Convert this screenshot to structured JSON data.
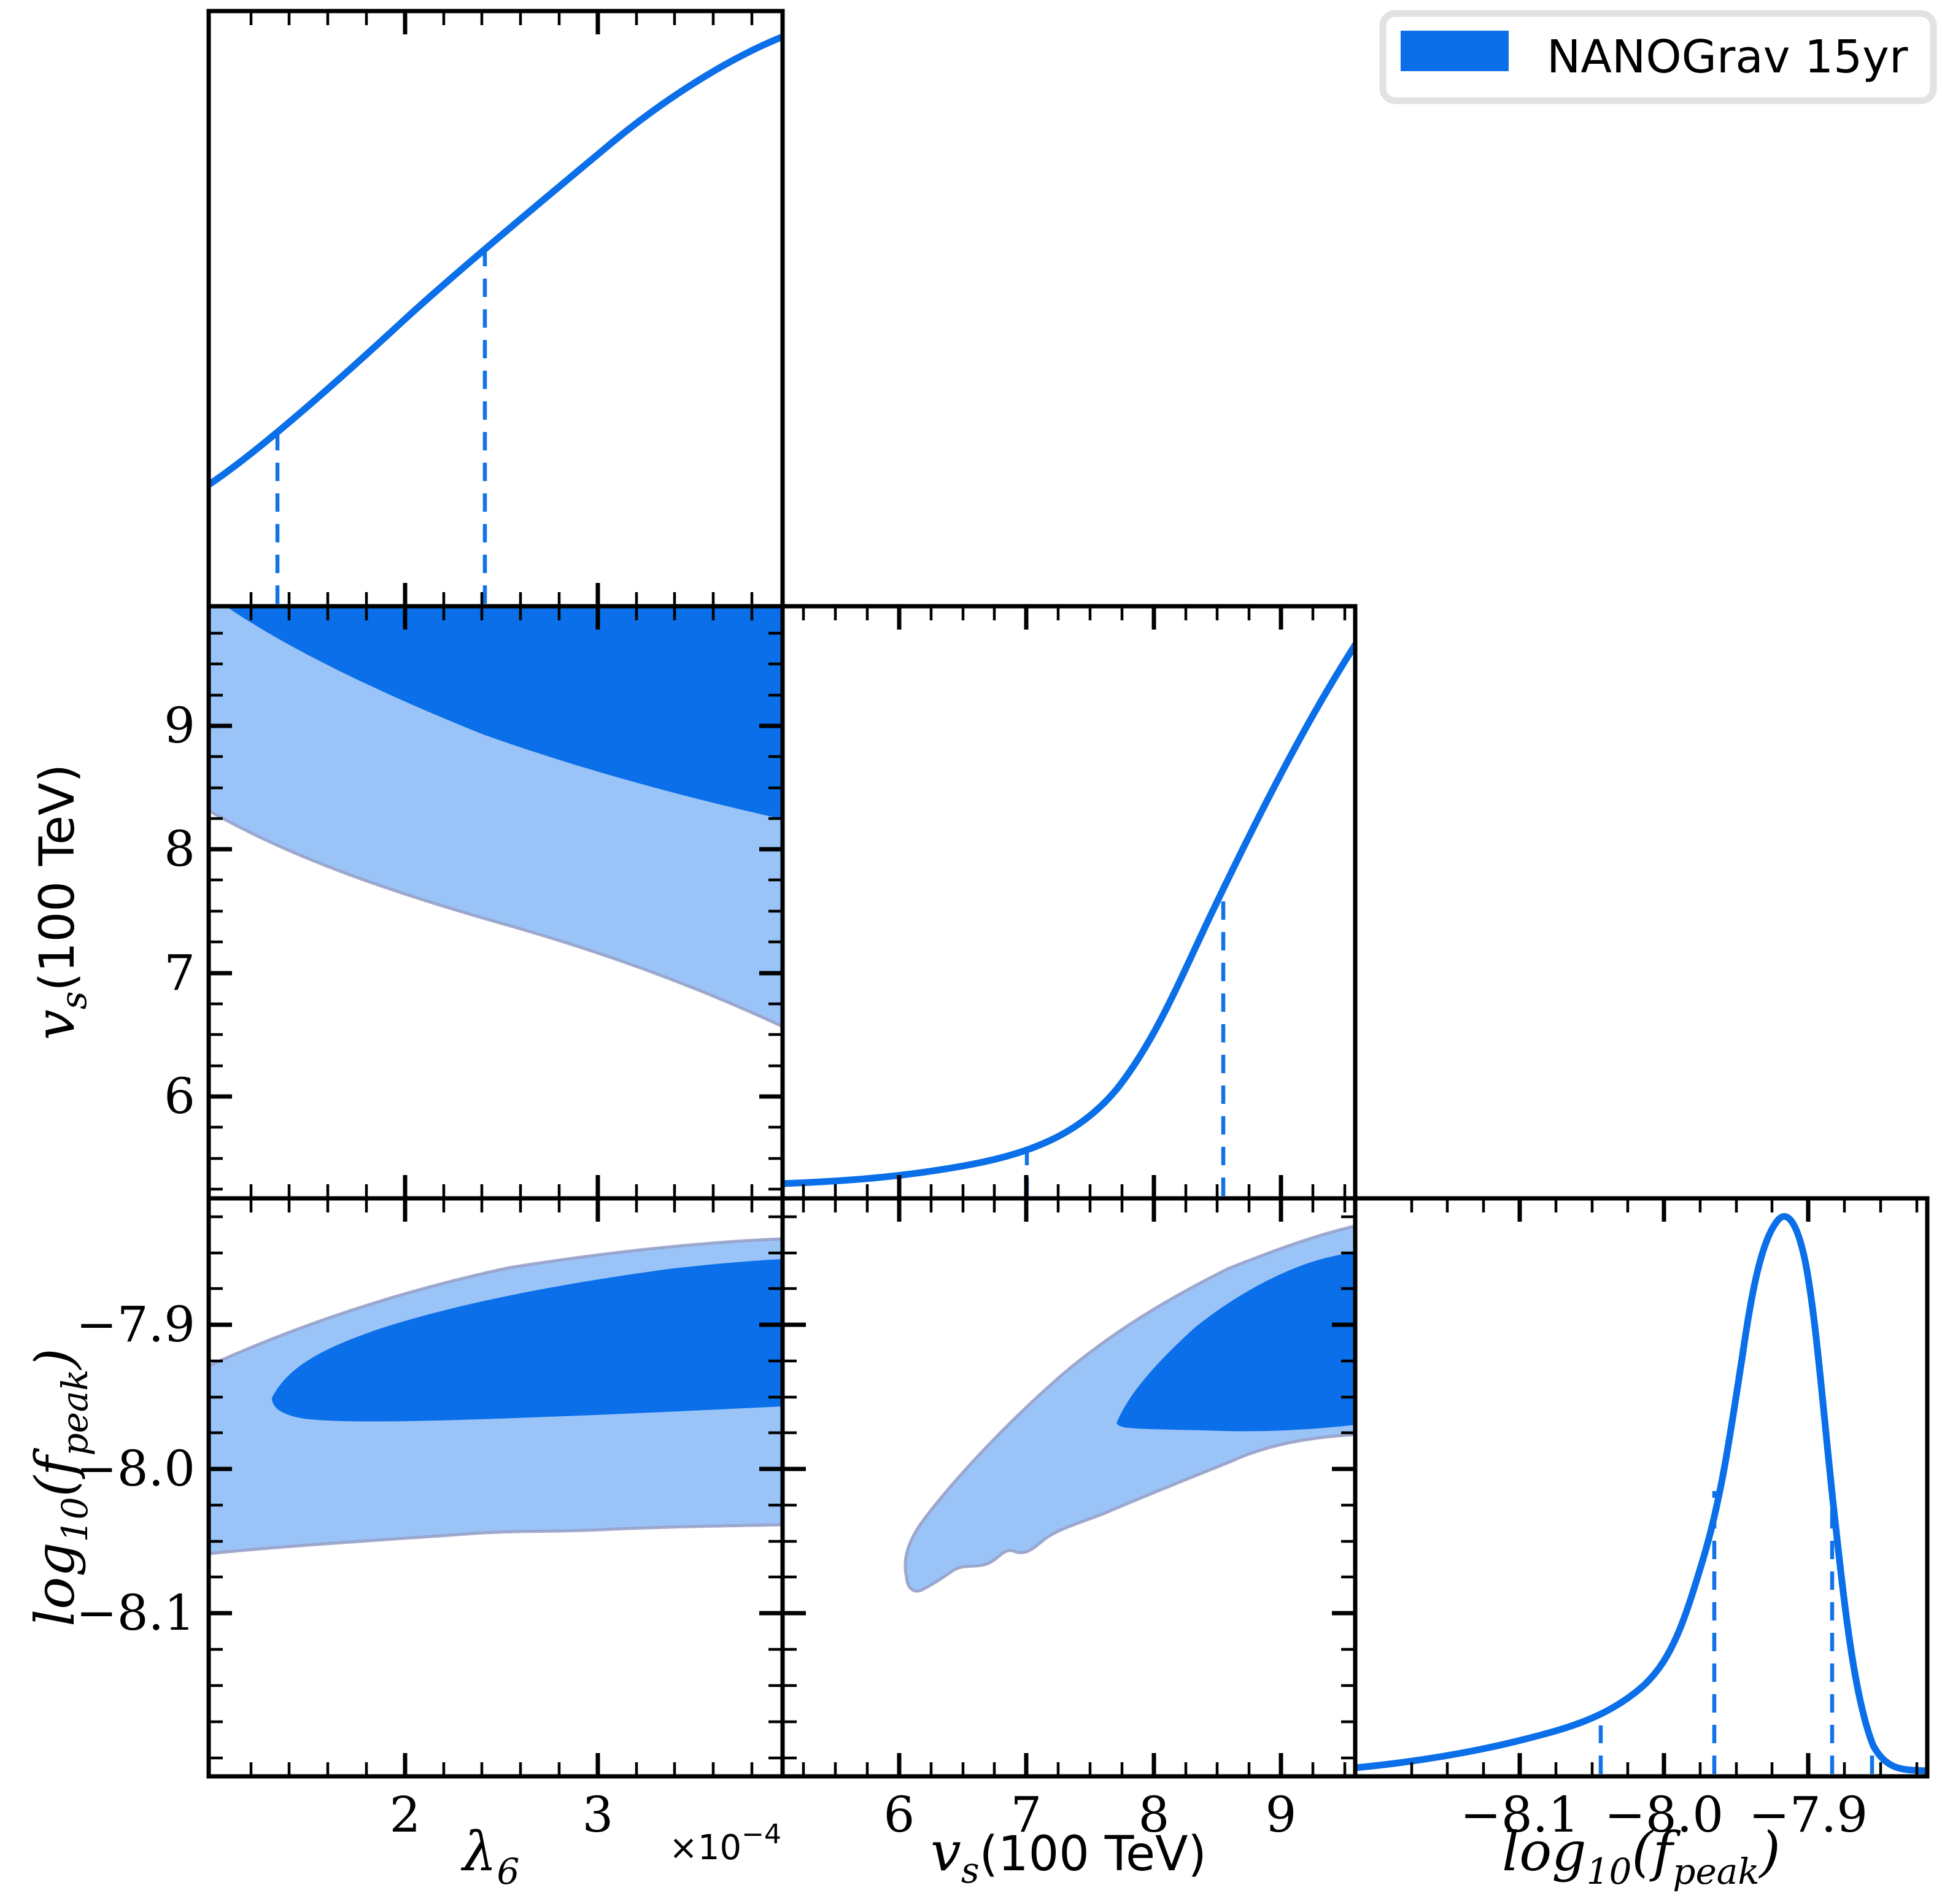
{
  "figure": {
    "background": "#ffffff",
    "legend": {
      "label": "NANOGrav 15yr",
      "swatch_color": "#0a6fe8"
    },
    "colors": {
      "contour_68_fill": "#0a6fe8",
      "contour_95_fill": "#9ac4f7",
      "contour_edge": "#98a1c9",
      "curve": "#0a6fe8",
      "quantile_dashed": "#1273e8",
      "axis": "#000000"
    }
  },
  "axes": {
    "lambda6": {
      "label_base": "λ",
      "label_sub": "6",
      "offset_text": "×10",
      "offset_sup": "−4",
      "range_scaled_by_1e-4": [
        1.0,
        4.0
      ],
      "tick_labels": [
        "2",
        "3"
      ]
    },
    "vs": {
      "label_base": "v",
      "label_sub": "s",
      "label_rest": "(100 TeV)",
      "range": [
        5.1,
        9.6
      ],
      "tick_labels": [
        "6",
        "7",
        "8",
        "9"
      ],
      "tick_labels_y": [
        "9",
        "8",
        "7",
        "6"
      ]
    },
    "fpeak": {
      "label_base": "log",
      "label_sub": "10",
      "label_open": "(f",
      "label_peak": "peak",
      "label_close": ")",
      "range": [
        -8.21,
        -7.82
      ],
      "tick_labels": [
        "−8.1",
        "−8.0",
        "−7.9"
      ],
      "tick_labels_y": [
        "−7.9",
        "−8.0",
        "−8.1"
      ]
    }
  },
  "chart_data": [
    {
      "id": "lambda6-marginal",
      "type": "line",
      "title": "1D marginal posterior of λ6 (×10⁻⁴)",
      "xlabel": "λ6 ×10⁻⁴",
      "x": [
        1.0,
        1.34,
        2.0,
        2.43,
        3.0,
        3.5,
        4.0
      ],
      "relative_density": [
        0.21,
        0.29,
        0.47,
        0.61,
        0.78,
        0.89,
        0.96
      ],
      "quantile_lines_x": [
        1.34,
        2.43
      ],
      "legend_position": "none",
      "grid": false
    },
    {
      "id": "vs-marginal",
      "type": "line",
      "title": "1D marginal posterior of v_s (100 TeV)",
      "xlabel": "v_s (100 TeV)",
      "x": [
        5.1,
        6.0,
        7.0,
        7.05,
        8.0,
        8.55,
        9.0,
        9.6
      ],
      "relative_density": [
        0.025,
        0.045,
        0.085,
        0.09,
        0.28,
        0.52,
        0.68,
        0.93
      ],
      "quantile_lines_x": [
        7.05,
        8.55
      ],
      "legend_position": "none",
      "grid": false
    },
    {
      "id": "fpeak-marginal",
      "type": "line",
      "title": "1D marginal posterior of log10(f_peak)",
      "xlabel": "log10(f_peak)",
      "x": [
        -8.2,
        -8.1,
        -8.05,
        -8.0,
        -7.97,
        -7.94,
        -7.92,
        -7.9,
        -7.88,
        -7.86,
        -7.84
      ],
      "relative_density": [
        0.01,
        0.05,
        0.08,
        0.14,
        0.49,
        0.9,
        1.0,
        0.85,
        0.48,
        0.12,
        0.02
      ],
      "quantile_lines_x": [
        -8.04,
        -7.96,
        -7.88,
        -7.85
      ],
      "legend_position": "none",
      "grid": false
    },
    {
      "id": "lambda6-vs-contour",
      "type": "area",
      "subtype": "2d-credible-contours",
      "title": "λ6 vs v_s joint posterior",
      "xlabel": "λ6 ×10⁻⁴",
      "ylabel": "v_s (100 TeV)",
      "xlim": [
        1.0,
        4.0
      ],
      "ylim": [
        5.1,
        10.0
      ],
      "levels": [
        0.68,
        0.95
      ],
      "boundary_68_lower": [
        [
          1.07,
          9.96
        ],
        [
          1.58,
          9.48
        ],
        [
          2.18,
          9.05
        ],
        [
          2.78,
          8.72
        ],
        [
          3.38,
          8.45
        ],
        [
          3.98,
          8.24
        ]
      ],
      "boundary_95_lower": [
        [
          0.98,
          8.31
        ],
        [
          1.43,
          7.93
        ],
        [
          2.03,
          7.62
        ],
        [
          2.63,
          7.35
        ],
        [
          3.23,
          7.04
        ],
        [
          3.68,
          6.78
        ],
        [
          3.98,
          6.57
        ]
      ],
      "region_shape": "both regions extend to the top edge of the panel",
      "grid": false
    },
    {
      "id": "lambda6-fpeak-contour",
      "type": "area",
      "subtype": "2d-credible-contours",
      "title": "λ6 vs log10(f_peak) joint posterior",
      "xlabel": "λ6 ×10⁻⁴",
      "ylabel": "log10(f_peak)",
      "xlim": [
        1.0,
        4.0
      ],
      "ylim": [
        -8.21,
        -7.82
      ],
      "levels": [
        0.68,
        0.95
      ],
      "boundary_95_upper": [
        [
          0.98,
          -7.929
        ],
        [
          1.43,
          -7.903
        ],
        [
          2.03,
          -7.875
        ],
        [
          2.78,
          -7.855
        ],
        [
          3.38,
          -7.847
        ],
        [
          3.98,
          -7.841
        ]
      ],
      "boundary_95_lower": [
        [
          0.98,
          -8.059
        ],
        [
          1.58,
          -8.055
        ],
        [
          2.18,
          -8.049
        ],
        [
          2.78,
          -8.043
        ],
        [
          3.38,
          -8.041
        ],
        [
          3.98,
          -8.039
        ]
      ],
      "boundary_68_upper": [
        [
          1.31,
          -7.951
        ],
        [
          1.73,
          -7.909
        ],
        [
          2.48,
          -7.879
        ],
        [
          3.23,
          -7.863
        ],
        [
          3.98,
          -7.855
        ]
      ],
      "boundary_68_lower": [
        [
          1.31,
          -7.951
        ],
        [
          1.73,
          -7.967
        ],
        [
          2.48,
          -7.965
        ],
        [
          3.23,
          -7.961
        ],
        [
          3.98,
          -7.957
        ]
      ],
      "grid": false
    },
    {
      "id": "vs-fpeak-contour",
      "type": "area",
      "subtype": "2d-credible-contours",
      "title": "v_s vs log10(f_peak) joint posterior",
      "xlabel": "v_s (100 TeV)",
      "ylabel": "log10(f_peak)",
      "xlim": [
        5.1,
        9.6
      ],
      "ylim": [
        -8.21,
        -7.82
      ],
      "levels": [
        0.68,
        0.95
      ],
      "boundary_95_upper": [
        [
          6.06,
          -8.075
        ],
        [
          6.43,
          -8.021
        ],
        [
          7.16,
          -7.945
        ],
        [
          8.07,
          -7.885
        ],
        [
          8.91,
          -7.853
        ],
        [
          9.58,
          -7.833
        ]
      ],
      "boundary_95_lower": [
        [
          6.06,
          -8.075
        ],
        [
          6.43,
          -8.069
        ],
        [
          6.98,
          -8.059
        ],
        [
          7.56,
          -8.033
        ],
        [
          8.07,
          -8.013
        ],
        [
          8.98,
          -7.979
        ],
        [
          9.58,
          -7.975
        ]
      ],
      "boundary_68_upper": [
        [
          7.71,
          -7.967
        ],
        [
          8.07,
          -7.918
        ],
        [
          8.68,
          -7.873
        ],
        [
          9.58,
          -7.849
        ]
      ],
      "boundary_68_lower": [
        [
          7.71,
          -7.967
        ],
        [
          8.37,
          -7.973
        ],
        [
          8.91,
          -7.973
        ],
        [
          9.58,
          -7.969
        ]
      ],
      "grid": false
    }
  ]
}
